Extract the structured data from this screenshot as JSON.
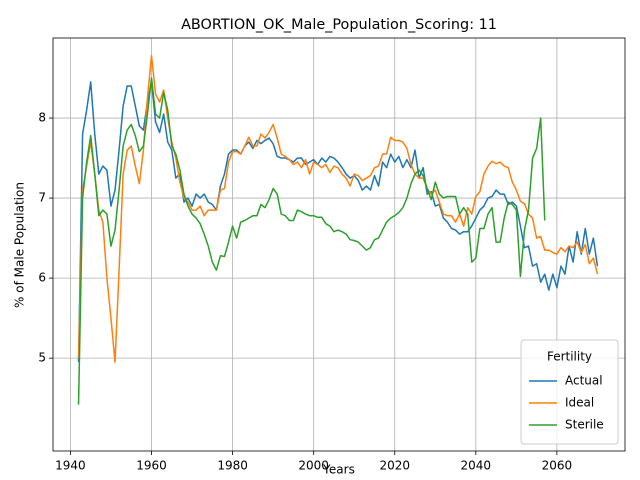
{
  "chart_data": {
    "type": "line",
    "title": "ABORTION_OK_Male_Population_Scoring: 11",
    "x_label": "Years",
    "y_label": "% of Male Population",
    "legend_title": "Fertility",
    "legend": "lower right",
    "grid": true,
    "xlim": [
      1935.7,
      2076.8
    ],
    "ylim": [
      3.84,
      9.0
    ],
    "xticks": [
      1940,
      1960,
      1980,
      2000,
      2020,
      2040,
      2060
    ],
    "yticks": [
      5,
      6,
      7,
      8
    ],
    "x": [
      1942,
      1943,
      1944,
      1945,
      1946,
      1947,
      1948,
      1949,
      1950,
      1951,
      1952,
      1953,
      1954,
      1955,
      1956,
      1957,
      1958,
      1959,
      1960,
      1961,
      1962,
      1963,
      1964,
      1965,
      1966,
      1967,
      1968,
      1969,
      1970,
      1971,
      1972,
      1973,
      1974,
      1975,
      1976,
      1977,
      1978,
      1979,
      1980,
      1981,
      1982,
      1983,
      1984,
      1985,
      1986,
      1987,
      1988,
      1989,
      1990,
      1991,
      1992,
      1993,
      1994,
      1995,
      1996,
      1997,
      1998,
      1999,
      2000,
      2001,
      2002,
      2003,
      2004,
      2005,
      2006,
      2007,
      2008,
      2009,
      2010,
      2011,
      2012,
      2013,
      2014,
      2015,
      2016,
      2017,
      2018,
      2019,
      2020,
      2021,
      2022,
      2023,
      2024,
      2025,
      2026,
      2027,
      2028,
      2029,
      2030,
      2031,
      2032,
      2033,
      2034,
      2035,
      2036,
      2037,
      2038,
      2039,
      2040,
      2041,
      2042,
      2043,
      2044,
      2045,
      2046,
      2047,
      2048,
      2049,
      2050,
      2051,
      2052,
      2053,
      2054,
      2055,
      2056,
      2057,
      2058,
      2059,
      2060,
      2061,
      2062,
      2063,
      2064,
      2065,
      2066,
      2067,
      2068,
      2069,
      2070
    ],
    "series": [
      {
        "name": "Actual",
        "color": "#1f77b4",
        "values": [
          4.95,
          7.8,
          8.1,
          8.45,
          7.8,
          7.3,
          7.4,
          7.35,
          6.9,
          7.1,
          7.6,
          8.15,
          8.4,
          8.4,
          8.15,
          7.9,
          7.85,
          8.2,
          8.45,
          7.95,
          7.82,
          8.05,
          7.7,
          7.6,
          7.25,
          7.3,
          6.95,
          7.0,
          6.9,
          7.05,
          7.0,
          7.05,
          6.95,
          6.92,
          6.85,
          7.15,
          7.3,
          7.55,
          7.6,
          7.6,
          7.55,
          7.65,
          7.7,
          7.62,
          7.72,
          7.68,
          7.72,
          7.75,
          7.68,
          7.52,
          7.5,
          7.5,
          7.48,
          7.45,
          7.5,
          7.5,
          7.42,
          7.45,
          7.48,
          7.42,
          7.5,
          7.45,
          7.52,
          7.5,
          7.45,
          7.38,
          7.3,
          7.25,
          7.28,
          7.22,
          7.1,
          7.15,
          7.1,
          7.28,
          7.15,
          7.45,
          7.38,
          7.55,
          7.45,
          7.52,
          7.38,
          7.48,
          7.38,
          7.6,
          7.25,
          7.38,
          7.05,
          7.08,
          6.9,
          6.92,
          6.75,
          6.7,
          6.62,
          6.6,
          6.55,
          6.58,
          6.58,
          6.65,
          6.75,
          6.85,
          6.9,
          7.0,
          7.02,
          7.1,
          7.05,
          7.05,
          6.92,
          6.95,
          6.9,
          6.65,
          6.38,
          6.4,
          6.15,
          6.18,
          5.95,
          6.05,
          5.85,
          6.05,
          5.88,
          6.15,
          6.05,
          6.4,
          6.2,
          6.58,
          6.3,
          6.62,
          6.3,
          6.5,
          6.15
        ]
      },
      {
        "name": "Ideal",
        "color": "#ff7f0e",
        "values": [
          5.0,
          7.1,
          7.4,
          7.7,
          7.3,
          6.85,
          6.7,
          6.0,
          5.5,
          4.95,
          6.1,
          7.3,
          7.6,
          7.65,
          7.4,
          7.18,
          7.6,
          8.25,
          8.78,
          8.3,
          8.2,
          8.35,
          8.0,
          7.7,
          7.5,
          7.2,
          7.0,
          6.95,
          6.85,
          6.85,
          6.9,
          6.78,
          6.85,
          6.85,
          6.85,
          7.1,
          7.12,
          7.45,
          7.58,
          7.58,
          7.55,
          7.65,
          7.76,
          7.65,
          7.65,
          7.8,
          7.75,
          7.82,
          7.92,
          7.75,
          7.55,
          7.52,
          7.48,
          7.42,
          7.45,
          7.38,
          7.48,
          7.3,
          7.45,
          7.42,
          7.38,
          7.42,
          7.32,
          7.4,
          7.38,
          7.3,
          7.25,
          7.15,
          7.3,
          7.28,
          7.22,
          7.25,
          7.28,
          7.38,
          7.4,
          7.55,
          7.55,
          7.76,
          7.72,
          7.72,
          7.7,
          7.62,
          7.42,
          7.3,
          7.25,
          7.25,
          7.12,
          7.05,
          7.1,
          6.95,
          6.8,
          6.78,
          6.78,
          6.7,
          6.8,
          6.65,
          6.88,
          6.8,
          7.02,
          7.08,
          7.3,
          7.4,
          7.46,
          7.43,
          7.45,
          7.4,
          7.38,
          7.2,
          7.1,
          6.96,
          6.93,
          6.8,
          6.75,
          6.5,
          6.52,
          6.35,
          6.35,
          6.32,
          6.3,
          6.38,
          6.33,
          6.4,
          6.38,
          6.45,
          6.32,
          6.42,
          6.18,
          6.25,
          6.05
        ]
      },
      {
        "name": "Sterile",
        "color": "#2ca02c",
        "values": [
          4.42,
          7.0,
          7.45,
          7.78,
          7.3,
          6.78,
          6.85,
          6.8,
          6.4,
          6.6,
          7.1,
          7.65,
          7.85,
          7.92,
          7.78,
          7.58,
          7.65,
          8.05,
          8.5,
          8.05,
          8.0,
          8.32,
          8.1,
          7.65,
          7.55,
          7.35,
          7.05,
          6.9,
          6.8,
          6.75,
          6.68,
          6.55,
          6.4,
          6.2,
          6.1,
          6.28,
          6.27,
          6.45,
          6.65,
          6.5,
          6.7,
          6.72,
          6.75,
          6.78,
          6.78,
          6.92,
          6.88,
          6.98,
          7.12,
          7.05,
          6.8,
          6.78,
          6.72,
          6.72,
          6.85,
          6.83,
          6.8,
          6.78,
          6.78,
          6.76,
          6.76,
          6.68,
          6.65,
          6.58,
          6.6,
          6.58,
          6.55,
          6.48,
          6.47,
          6.45,
          6.4,
          6.35,
          6.38,
          6.48,
          6.5,
          6.6,
          6.7,
          6.75,
          6.78,
          6.82,
          6.88,
          7.0,
          7.18,
          7.3,
          7.35,
          7.28,
          7.12,
          6.98,
          7.2,
          7.05,
          7.0,
          7.02,
          7.02,
          7.02,
          6.8,
          6.88,
          6.8,
          6.2,
          6.25,
          6.62,
          6.62,
          6.8,
          6.88,
          6.45,
          6.45,
          6.75,
          6.95,
          6.92,
          6.85,
          6.02,
          6.6,
          6.85,
          7.5,
          7.62,
          8.0,
          6.72,
          null,
          null,
          null,
          null,
          null,
          null,
          null,
          null,
          null,
          null,
          null,
          null,
          null
        ]
      }
    ]
  }
}
